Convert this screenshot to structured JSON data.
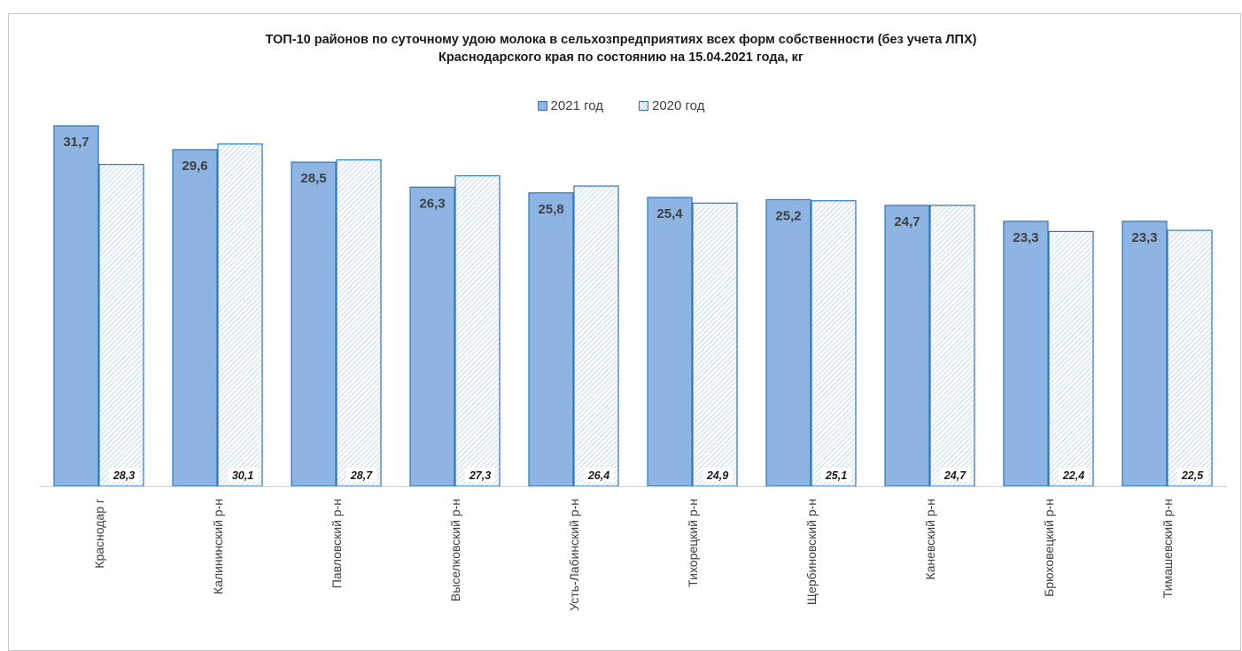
{
  "chart_data": {
    "type": "bar",
    "title_line1": "ТОП-10 районов по суточному удою молока  в сельхозпредприятиях всех форм собственности (без учета ЛПХ)",
    "title_line2": "Краснодарского края по состоянию на 15.04.2021 года, кг",
    "categories": [
      "Краснодар г",
      "Калининский р-н",
      "Павловский р-н",
      "Выселковский р-н",
      "Усть-Лабинский р-н",
      "Тихорецкий р-н",
      "Щербиновский р-н",
      "Каневский р-н",
      "Брюховецкий р-н",
      "Тимашевский р-н"
    ],
    "series": [
      {
        "name": "2021 год",
        "values": [
          31.7,
          29.6,
          28.5,
          26.3,
          25.8,
          25.4,
          25.2,
          24.7,
          23.3,
          23.3
        ],
        "labels": [
          "31,7",
          "29,6",
          "28,5",
          "26,3",
          "25,8",
          "25,4",
          "25,2",
          "24,7",
          "23,3",
          "23,3"
        ]
      },
      {
        "name": "2020 год",
        "values": [
          28.3,
          30.1,
          28.7,
          27.3,
          26.4,
          24.9,
          25.1,
          24.7,
          22.4,
          22.5
        ],
        "labels": [
          "28,3",
          "30,1",
          "28,7",
          "27,3",
          "26,4",
          "24,9",
          "25,1",
          "24,7",
          "22,4",
          "22,5"
        ]
      }
    ],
    "colors": {
      "series_2021_fill": "#8eb4e3",
      "series_2021_border": "#2e75b6",
      "series_2020_hatch": "#9dc3e6",
      "series_2020_border": "#2e75b6"
    },
    "ylim": [
      0,
      31.7
    ],
    "legend": "top-center",
    "grid": false
  }
}
